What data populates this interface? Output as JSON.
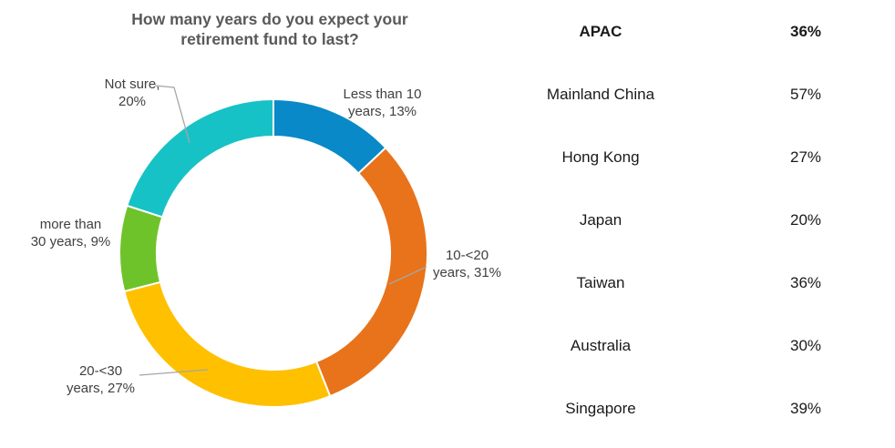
{
  "title": "How many years do you expect your\nretirement fund to last?",
  "chart_data": {
    "type": "pie",
    "subtype": "donut",
    "title": "How many years do you expect your retirement fund to last?",
    "start_angle_deg": 0,
    "direction": "clockwise",
    "legend_position": "callouts",
    "segments": [
      {
        "label": "Less than 10 years",
        "value": 13,
        "color": "#0989C7",
        "callout": "Less than 10\nyears, 13%"
      },
      {
        "label": "10-<20 years",
        "value": 31,
        "color": "#E8731A",
        "callout": "10-<20\nyears, 31%"
      },
      {
        "label": "20-<30 years",
        "value": 27,
        "color": "#FFC000",
        "callout": "20-<30\nyears, 27%"
      },
      {
        "label": "more than 30 years",
        "value": 9,
        "color": "#6FC32A",
        "callout": "more than\n30 years, 9%"
      },
      {
        "label": "Not sure",
        "value": 20,
        "color": "#17C2C6",
        "callout": "Not sure,\n20%"
      }
    ],
    "leader_line_color": "#A6A6A6"
  },
  "table": {
    "rows": [
      {
        "label": "APAC",
        "value": "36%"
      },
      {
        "label": "Mainland China",
        "value": "57%"
      },
      {
        "label": "Hong Kong",
        "value": "27%"
      },
      {
        "label": "Japan",
        "value": "20%"
      },
      {
        "label": "Taiwan",
        "value": "36%"
      },
      {
        "label": "Australia",
        "value": "30%"
      },
      {
        "label": "Singapore",
        "value": "39%"
      }
    ]
  }
}
